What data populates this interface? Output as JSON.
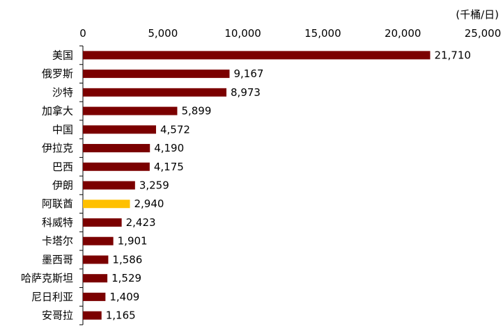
{
  "chart_data": {
    "type": "bar",
    "orientation": "horizontal",
    "unit": "(千桶/日)",
    "xlim": [
      0,
      25000
    ],
    "xticks": [
      "0",
      "5,000",
      "10,000",
      "15,000",
      "20,000",
      "25,000"
    ],
    "xtick_values": [
      0,
      5000,
      10000,
      15000,
      20000,
      25000
    ],
    "grid": false,
    "categories": [
      "美国",
      "俄罗斯",
      "沙特",
      "加拿大",
      "中国",
      "伊拉克",
      "巴西",
      "伊朗",
      "阿联酋",
      "科威特",
      "卡塔尔",
      "墨西哥",
      "哈萨克斯坦",
      "尼日利亚",
      "安哥拉"
    ],
    "values": [
      21710,
      9167,
      8973,
      5899,
      4572,
      4190,
      4175,
      3259,
      2940,
      2423,
      1901,
      1586,
      1529,
      1409,
      1165
    ],
    "value_labels": [
      "21,710",
      "9,167",
      "8,973",
      "5,899",
      "4,572",
      "4,190",
      "4,175",
      "3,259",
      "2,940",
      "2,423",
      "1,901",
      "1,586",
      "1,529",
      "1,409",
      "1,165"
    ],
    "bar_color": "#7B0000",
    "highlight_color": "#FFC000",
    "highlight_category": "阿联酋"
  }
}
